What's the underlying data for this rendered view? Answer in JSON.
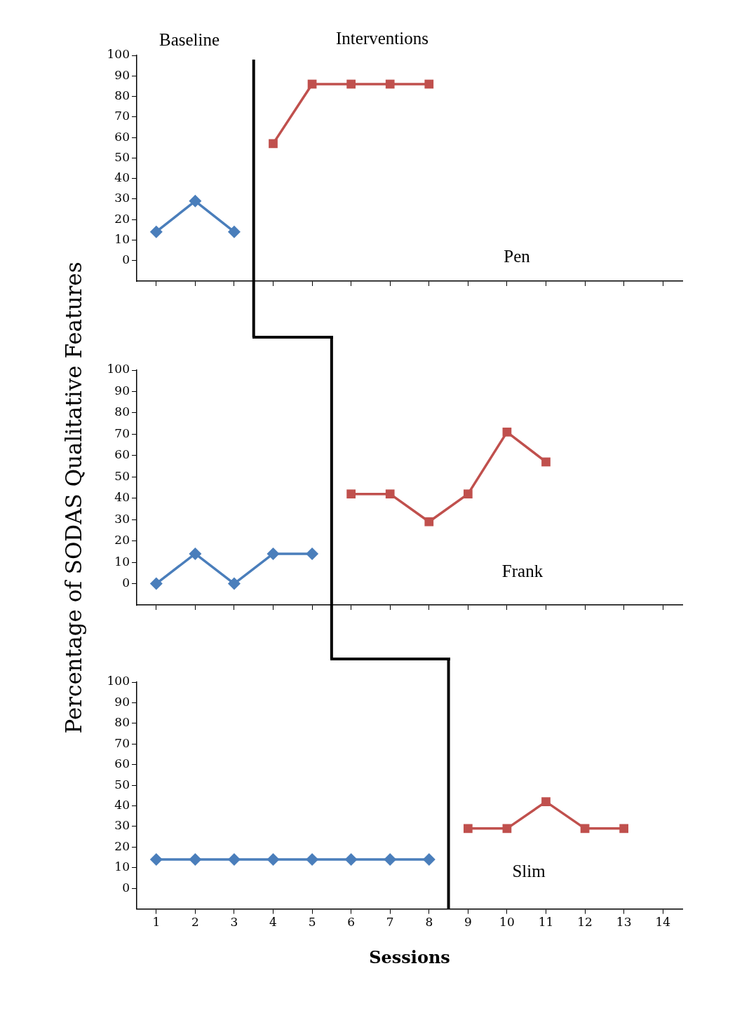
{
  "chart_data": [
    {
      "type": "line",
      "annotations": [
        "Baseline",
        "Interventions",
        "Pen"
      ],
      "xlim": [
        0.5,
        14.5
      ],
      "xticks": [
        1,
        2,
        3,
        4,
        5,
        6,
        7,
        8,
        9,
        10,
        11,
        12,
        13,
        14
      ],
      "ylim": [
        -10,
        100
      ],
      "yticks": [
        0,
        10,
        20,
        30,
        40,
        50,
        60,
        70,
        80,
        90,
        100
      ],
      "tick_labels": "y",
      "grid": false,
      "legend": false,
      "ref_lines": [
        {
          "axis": "x",
          "value": 3.5,
          "color": "#000000"
        }
      ],
      "series": [
        {
          "color": "#4a7ebb",
          "marker": "diamond",
          "x": [
            1,
            2,
            3
          ],
          "values": [
            14,
            29,
            14
          ]
        },
        {
          "color": "#c0504d",
          "marker": "square",
          "x": [
            4,
            5,
            6,
            7,
            8
          ],
          "values": [
            57,
            86,
            86,
            86,
            86
          ]
        }
      ]
    },
    {
      "type": "line",
      "ylabel": "Percentage of SODAS Qualitative Features",
      "annotations": [
        "Frank"
      ],
      "xlim": [
        0.5,
        14.5
      ],
      "xticks": [
        1,
        2,
        3,
        4,
        5,
        6,
        7,
        8,
        9,
        10,
        11,
        12,
        13,
        14
      ],
      "ylim": [
        -10,
        100
      ],
      "yticks": [
        0,
        10,
        20,
        30,
        40,
        50,
        60,
        70,
        80,
        90,
        100
      ],
      "tick_labels": "y",
      "grid": false,
      "legend": false,
      "ref_lines": [
        {
          "axis": "x",
          "value": 5.5,
          "color": "#000000"
        }
      ],
      "series": [
        {
          "color": "#4a7ebb",
          "marker": "diamond",
          "x": [
            1,
            2,
            3,
            4,
            5
          ],
          "values": [
            0,
            14,
            0,
            14,
            14
          ]
        },
        {
          "color": "#c0504d",
          "marker": "square",
          "x": [
            6,
            7,
            8,
            9,
            10,
            11
          ],
          "values": [
            42,
            42,
            29,
            42,
            71,
            57
          ]
        }
      ]
    },
    {
      "type": "line",
      "xlabel": "Sessions",
      "annotations": [
        "Slim"
      ],
      "xlim": [
        0.5,
        14.5
      ],
      "xticks": [
        1,
        2,
        3,
        4,
        5,
        6,
        7,
        8,
        9,
        10,
        11,
        12,
        13,
        14
      ],
      "ylim": [
        -10,
        100
      ],
      "yticks": [
        0,
        10,
        20,
        30,
        40,
        50,
        60,
        70,
        80,
        90,
        100
      ],
      "grid": false,
      "legend": false,
      "ref_lines": [
        {
          "axis": "x",
          "value": 8.5,
          "color": "#000000"
        }
      ],
      "series": [
        {
          "color": "#4a7ebb",
          "marker": "diamond",
          "x": [
            1,
            2,
            3,
            4,
            5,
            6,
            7,
            8
          ],
          "values": [
            14,
            14,
            14,
            14,
            14,
            14,
            14,
            14
          ]
        },
        {
          "color": "#c0504d",
          "marker": "square",
          "x": [
            9,
            10,
            11,
            12,
            13
          ],
          "values": [
            29,
            29,
            42,
            29,
            29
          ]
        }
      ]
    }
  ]
}
